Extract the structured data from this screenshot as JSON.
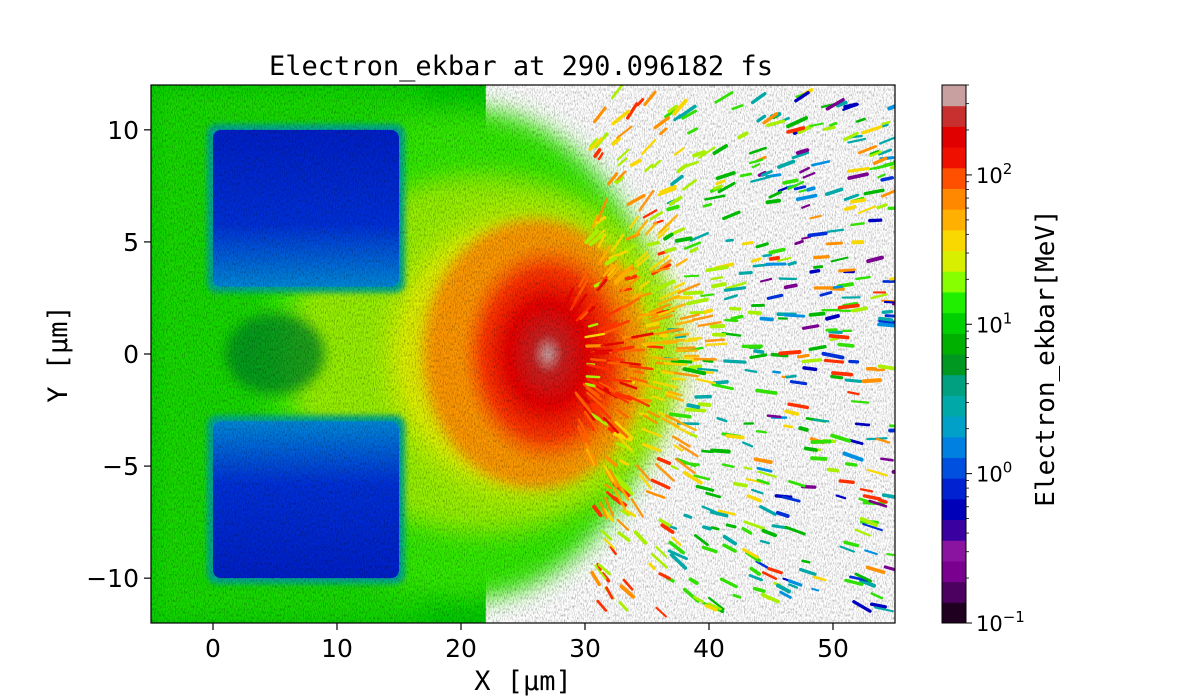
{
  "chart_data": {
    "type": "heatmap",
    "title": "Electron_ekbar at 290.096182 fs",
    "xlabel": "X [μm]",
    "ylabel": "Y [μm]",
    "xlim": [
      -5,
      55
    ],
    "ylim": [
      -12,
      12
    ],
    "x_ticks": [
      {
        "value": 0,
        "label": "0"
      },
      {
        "value": 10,
        "label": "10"
      },
      {
        "value": 20,
        "label": "20"
      },
      {
        "value": 30,
        "label": "30"
      },
      {
        "value": 40,
        "label": "40"
      },
      {
        "value": 50,
        "label": "50"
      }
    ],
    "y_ticks": [
      {
        "value": -10,
        "label": "−10"
      },
      {
        "value": -5,
        "label": "−5"
      },
      {
        "value": 0,
        "label": "0"
      },
      {
        "value": 5,
        "label": "5"
      },
      {
        "value": 10,
        "label": "10"
      }
    ],
    "colorbar": {
      "label": "Electron_ekbar[MeV]",
      "scale": "log",
      "range": [
        0.1,
        400
      ],
      "ticks": [
        {
          "value": 0.1,
          "base": "10",
          "exp": "−1"
        },
        {
          "value": 1,
          "base": "10",
          "exp": "0"
        },
        {
          "value": 10,
          "base": "10",
          "exp": "1"
        },
        {
          "value": 100,
          "base": "10",
          "exp": "2"
        }
      ],
      "colors": [
        "#200020",
        "#4c0060",
        "#7a0090",
        "#8a14a0",
        "#3a00a0",
        "#0000b8",
        "#0022d0",
        "#0050e0",
        "#0080e0",
        "#00a0c8",
        "#00a8a8",
        "#00a080",
        "#009820",
        "#00b000",
        "#00d000",
        "#20f000",
        "#88ff00",
        "#d8f000",
        "#f8d800",
        "#ffb000",
        "#ff8800",
        "#ff5000",
        "#f01000",
        "#e00000",
        "#c83030",
        "#c8a0a0"
      ]
    },
    "regions": [
      {
        "name": "target-upper",
        "x": [
          0,
          15
        ],
        "y": [
          3,
          10
        ],
        "value_MeV": 0.5
      },
      {
        "name": "target-lower",
        "x": [
          0,
          15
        ],
        "y": [
          -10,
          -3
        ],
        "value_MeV": 0.5
      },
      {
        "name": "hot-core",
        "x_center": 27,
        "y_center": 0,
        "value_MeV": 300
      }
    ]
  }
}
